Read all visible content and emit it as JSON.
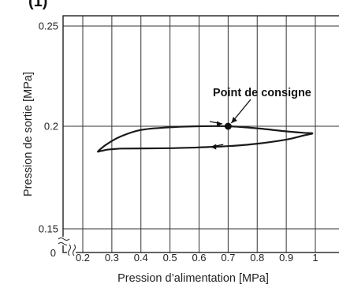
{
  "header_partial": "(1)",
  "chart_data": {
    "type": "line",
    "title": "",
    "xlabel": "Pression d’alimentation [MPa]",
    "ylabel": "Pression de sortie [MPa]",
    "xlim": [
      0.15,
      1.05
    ],
    "ylim": [
      0.15,
      0.25
    ],
    "x_ticks": [
      "0.2",
      "0.3",
      "0.4",
      "0.5",
      "0.6",
      "0.7",
      "0.8",
      "0.9",
      "1"
    ],
    "x_tick_values": [
      0.2,
      0.3,
      0.4,
      0.5,
      0.6,
      0.7,
      0.8,
      0.9,
      1.0
    ],
    "x_origin_label": "0",
    "y_ticks": [
      "0.15",
      "0.2",
      "0.25"
    ],
    "y_tick_values": [
      0.15,
      0.2,
      0.25
    ],
    "grid": true,
    "series": [
      {
        "x": [
          0.25,
          0.28,
          0.33,
          0.4,
          0.5,
          0.6,
          0.7,
          0.8,
          0.9,
          0.96,
          0.99,
          0.96,
          0.9,
          0.8,
          0.7,
          0.6,
          0.5,
          0.4,
          0.33,
          0.3,
          0.28,
          0.25
        ],
        "y": [
          0.1875,
          0.191,
          0.195,
          0.1982,
          0.1995,
          0.2,
          0.2,
          0.199,
          0.1975,
          0.1968,
          0.1965,
          0.1955,
          0.1935,
          0.1915,
          0.1903,
          0.1897,
          0.1893,
          0.1892,
          0.1891,
          0.1888,
          0.1885,
          0.1875
        ]
      }
    ],
    "setpoint": {
      "label": "Point de consigne",
      "x": 0.7,
      "y": 0.2
    },
    "direction_arrows": [
      {
        "x": 0.68,
        "y": 0.2,
        "direction": "right"
      },
      {
        "x": 0.64,
        "y": 0.1888,
        "direction": "left"
      }
    ]
  }
}
